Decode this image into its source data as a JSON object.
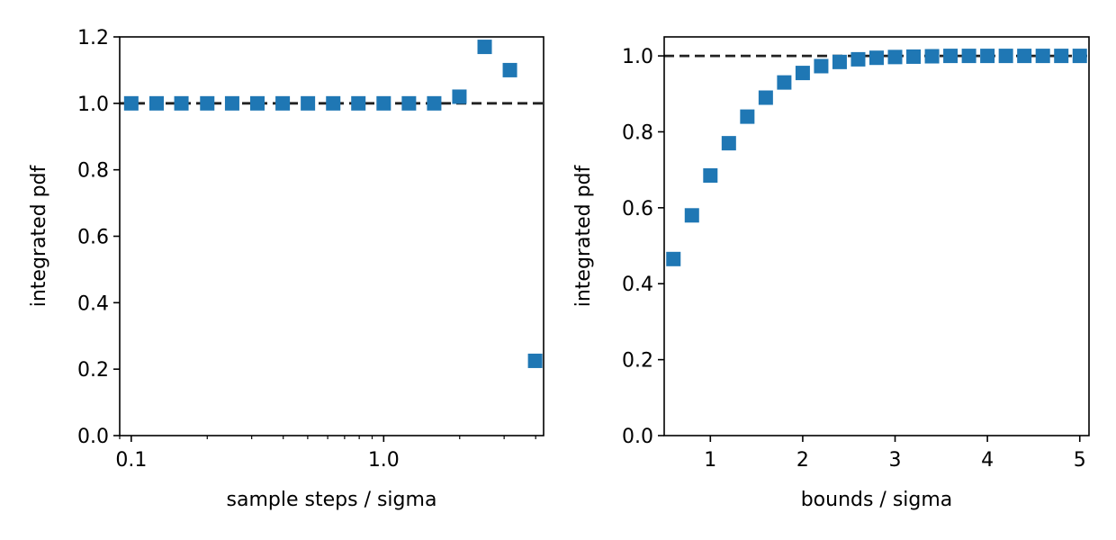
{
  "chart_data": [
    {
      "type": "scatter",
      "xlabel": "sample steps / sigma",
      "ylabel": "integrated pdf",
      "xscale": "log",
      "xlim": [
        0.09,
        4.3
      ],
      "ylim": [
        0,
        1.2
      ],
      "xticks": [
        0.1,
        1.0
      ],
      "xtick_labels": [
        "0.1",
        "1.0"
      ],
      "yticks": [
        0.0,
        0.2,
        0.4,
        0.6,
        0.8,
        1.0,
        1.2
      ],
      "ytick_labels": [
        "0.0",
        "0.2",
        "0.4",
        "0.6",
        "0.8",
        "1.0",
        "1.2"
      ],
      "reference_line": 1.0,
      "marker_color": "#1f77b4",
      "line_color": "#222222",
      "x": [
        0.1,
        0.126,
        0.158,
        0.2,
        0.251,
        0.316,
        0.398,
        0.501,
        0.631,
        0.794,
        1.0,
        1.259,
        1.585,
        1.995,
        2.512,
        3.162,
        3.981
      ],
      "y": [
        1.0,
        1.0,
        1.0,
        1.0,
        1.0,
        1.0,
        1.0,
        1.0,
        1.0,
        1.0,
        1.0,
        1.0,
        1.0,
        1.02,
        1.17,
        1.1,
        0.225
      ]
    },
    {
      "type": "scatter",
      "xlabel": "bounds / sigma",
      "ylabel": "integrated pdf",
      "xscale": "linear",
      "xlim": [
        0.5,
        5.1
      ],
      "ylim": [
        0,
        1.05
      ],
      "xticks": [
        1,
        2,
        3,
        4,
        5
      ],
      "xtick_labels": [
        "1",
        "2",
        "3",
        "4",
        "5"
      ],
      "yticks": [
        0.0,
        0.2,
        0.4,
        0.6,
        0.8,
        1.0
      ],
      "ytick_labels": [
        "0.0",
        "0.2",
        "0.4",
        "0.6",
        "0.8",
        "1.0"
      ],
      "reference_line": 1.0,
      "marker_color": "#1f77b4",
      "line_color": "#222222",
      "x": [
        0.6,
        0.8,
        1.0,
        1.2,
        1.4,
        1.6,
        1.8,
        2.0,
        2.2,
        2.4,
        2.6,
        2.8,
        3.0,
        3.2,
        3.4,
        3.6,
        3.8,
        4.0,
        4.2,
        4.4,
        4.6,
        4.8,
        5.0
      ],
      "y": [
        0.465,
        0.58,
        0.685,
        0.77,
        0.84,
        0.89,
        0.93,
        0.955,
        0.973,
        0.984,
        0.991,
        0.995,
        0.997,
        0.998,
        0.999,
        1.0,
        1.0,
        1.0,
        1.0,
        1.0,
        1.0,
        1.0,
        1.0
      ]
    }
  ]
}
